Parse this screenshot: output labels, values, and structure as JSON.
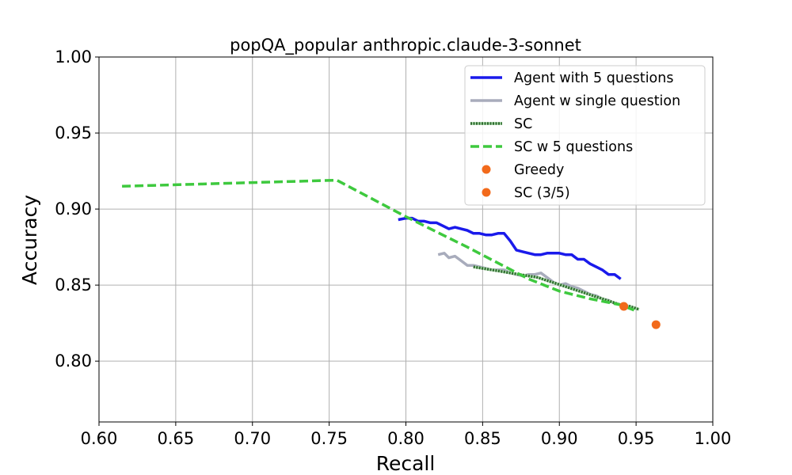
{
  "chart_data": {
    "type": "line",
    "title": "popQA_popular anthropic.claude-3-sonnet",
    "xlabel": "Recall",
    "ylabel": "Accuracy",
    "xlim": [
      0.6,
      1.0
    ],
    "ylim": [
      0.76,
      1.0
    ],
    "xticks": [
      "0.60",
      "0.65",
      "0.70",
      "0.75",
      "0.80",
      "0.85",
      "0.90",
      "0.95",
      "1.00"
    ],
    "yticks": [
      "0.80",
      "0.85",
      "0.90",
      "0.95",
      "1.00"
    ],
    "grid": true,
    "legend_position": "upper-right",
    "series": [
      {
        "name": "Agent with 5 questions",
        "kind": "line",
        "style": "solid",
        "color": "#1a1aeb",
        "x": [
          0.795,
          0.8,
          0.804,
          0.808,
          0.812,
          0.816,
          0.82,
          0.824,
          0.828,
          0.832,
          0.836,
          0.84,
          0.844,
          0.848,
          0.852,
          0.856,
          0.86,
          0.864,
          0.868,
          0.872,
          0.876,
          0.88,
          0.884,
          0.888,
          0.892,
          0.896,
          0.9,
          0.904,
          0.908,
          0.912,
          0.916,
          0.92,
          0.924,
          0.928,
          0.932,
          0.936,
          0.94
        ],
        "y": [
          0.893,
          0.894,
          0.894,
          0.892,
          0.892,
          0.891,
          0.891,
          0.889,
          0.887,
          0.888,
          0.887,
          0.886,
          0.884,
          0.884,
          0.883,
          0.883,
          0.884,
          0.884,
          0.879,
          0.873,
          0.872,
          0.871,
          0.87,
          0.87,
          0.871,
          0.871,
          0.871,
          0.87,
          0.87,
          0.867,
          0.867,
          0.864,
          0.862,
          0.86,
          0.857,
          0.857,
          0.854
        ]
      },
      {
        "name": "Agent w single question",
        "kind": "line",
        "style": "solid",
        "color": "#a8acbc",
        "x": [
          0.821,
          0.825,
          0.828,
          0.832,
          0.836,
          0.84,
          0.844,
          0.848,
          0.852,
          0.856,
          0.86,
          0.864,
          0.868,
          0.872,
          0.876,
          0.88,
          0.884,
          0.888,
          0.892,
          0.896,
          0.9,
          0.904,
          0.908,
          0.912,
          0.916,
          0.92,
          0.924,
          0.928,
          0.932,
          0.936,
          0.94
        ],
        "y": [
          0.87,
          0.871,
          0.868,
          0.869,
          0.866,
          0.863,
          0.863,
          0.862,
          0.861,
          0.86,
          0.86,
          0.86,
          0.858,
          0.857,
          0.856,
          0.857,
          0.857,
          0.858,
          0.855,
          0.852,
          0.85,
          0.851,
          0.849,
          0.848,
          0.846,
          0.844,
          0.843,
          0.841,
          0.84,
          0.838,
          0.837
        ]
      },
      {
        "name": "SC",
        "kind": "line",
        "style": "dotted",
        "color": "#2e6b2e",
        "x": [
          0.844,
          0.85,
          0.856,
          0.862,
          0.868,
          0.874,
          0.88,
          0.886,
          0.892,
          0.898,
          0.904,
          0.91,
          0.916,
          0.922,
          0.928,
          0.934,
          0.94,
          0.946,
          0.952
        ],
        "y": [
          0.862,
          0.861,
          0.86,
          0.859,
          0.858,
          0.857,
          0.856,
          0.855,
          0.853,
          0.851,
          0.849,
          0.847,
          0.845,
          0.843,
          0.841,
          0.839,
          0.837,
          0.836,
          0.834
        ]
      },
      {
        "name": "SC w 5 questions",
        "kind": "line",
        "style": "dashed",
        "color": "#3ec93e",
        "x": [
          0.615,
          0.755,
          0.8,
          0.84,
          0.88,
          0.9,
          0.92,
          0.94,
          0.95
        ],
        "y": [
          0.915,
          0.919,
          0.895,
          0.875,
          0.854,
          0.846,
          0.841,
          0.837,
          0.833
        ]
      },
      {
        "name": "Greedy",
        "kind": "scatter",
        "color": "#f26a1b",
        "x": [
          0.963
        ],
        "y": [
          0.824
        ]
      },
      {
        "name": "SC (3/5)",
        "kind": "scatter",
        "color": "#f26a1b",
        "x": [
          0.942
        ],
        "y": [
          0.836
        ]
      }
    ]
  }
}
